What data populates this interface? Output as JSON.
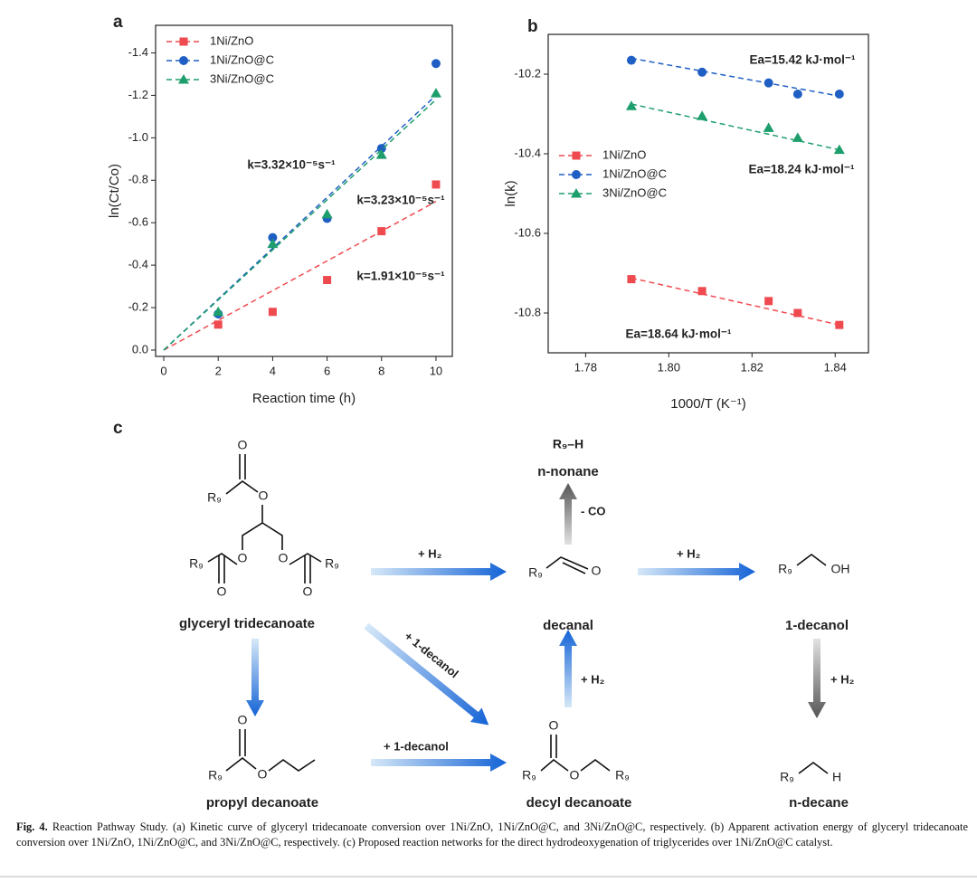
{
  "chart_data": [
    {
      "type": "scatter",
      "panel": "a",
      "x_label": "Reaction time (h)",
      "y_label": "ln(Ct/Co)",
      "x": [
        2,
        4,
        6,
        8,
        10
      ],
      "fit_x": [
        0,
        10
      ],
      "xlim": [
        -0.3,
        10.6
      ],
      "xticks": [
        0,
        2,
        4,
        6,
        8,
        10
      ],
      "ylim": [
        0.03,
        -1.53
      ],
      "yticks": [
        {
          "value": 0,
          "label": "0.0"
        },
        -0.2,
        -0.4,
        -0.6,
        -0.8,
        {
          "value": -1,
          "label": "-1.0"
        },
        -1.2,
        -1.4
      ],
      "legend": "upper left",
      "series": [
        {
          "name": "1Ni/ZnO",
          "color": "#ef4a4f",
          "marker": "square",
          "values": [
            -0.12,
            -0.18,
            -0.33,
            -0.56,
            -0.78
          ],
          "fit": [
            0,
            -0.7
          ],
          "annotation": "k=1.91×10⁻⁵s⁻¹"
        },
        {
          "name": "1Ni/ZnO@C",
          "color": "#1f5fc4",
          "marker": "circle",
          "values": [
            -0.17,
            -0.53,
            -0.62,
            -0.95,
            -1.35
          ],
          "fit": [
            0,
            -1.2
          ],
          "annotation": "k=3.32×10⁻⁵s⁻¹"
        },
        {
          "name": "3Ni/ZnO@C",
          "color": "#1e9e6c",
          "marker": "triangle",
          "values": [
            -0.18,
            -0.5,
            -0.64,
            -0.92,
            -1.21
          ],
          "fit": [
            0,
            -1.18
          ],
          "annotation": "k=3.23×10⁻⁵s⁻¹"
        }
      ]
    },
    {
      "type": "scatter",
      "panel": "b",
      "x_label": "1000/T (K⁻¹)",
      "y_label": "ln(k)",
      "x": [
        1.791,
        1.808,
        1.824,
        1.831,
        1.841
      ],
      "fit_x": [
        1.791,
        1.841
      ],
      "xlim": [
        1.771,
        1.848
      ],
      "xticks": [
        1.78,
        {
          "value": 1.8,
          "label": "1.80"
        },
        1.82,
        1.84
      ],
      "ylim": [
        -10.9,
        -10.1
      ],
      "yticks": [
        -10.2,
        -10.4,
        -10.6,
        -10.8
      ],
      "legend": "center left",
      "series": [
        {
          "name": "1Ni/ZnO",
          "color": "#ef4a4f",
          "marker": "square",
          "values": [
            -10.715,
            -10.745,
            -10.77,
            -10.8,
            -10.83
          ],
          "fit": [
            -10.712,
            -10.83
          ],
          "annotation": "Ea=18.64 kJ·mol⁻¹"
        },
        {
          "name": "1Ni/ZnO@C",
          "color": "#1f5fc4",
          "marker": "circle",
          "values": [
            -10.165,
            -10.195,
            -10.222,
            -10.25,
            -10.25
          ],
          "fit": [
            -10.16,
            -10.255
          ],
          "annotation": "Ea=15.42 kJ·mol⁻¹"
        },
        {
          "name": "3Ni/ZnO@C",
          "color": "#1e9e6c",
          "marker": "triangle",
          "values": [
            -10.28,
            -10.305,
            -10.335,
            -10.36,
            -10.39
          ],
          "fit": [
            -10.275,
            -10.39
          ],
          "annotation": "Ea=18.24 kJ·mol⁻¹"
        }
      ]
    }
  ],
  "diagram": {
    "panel": "c",
    "compounds": [
      {
        "name": "glyceryl tridecanoate",
        "atoms": [
          "O",
          "R₉",
          "O",
          "R₉",
          "O",
          "O",
          "R₉",
          "O",
          "O"
        ]
      },
      {
        "name": "decanal",
        "atoms": [
          "R₉",
          "O"
        ]
      },
      {
        "name": "1-decanol",
        "atoms": [
          "R₉",
          "OH"
        ]
      },
      {
        "name": "propyl decanoate",
        "atoms": [
          "O",
          "R₉",
          "O"
        ]
      },
      {
        "name": "decyl decanoate",
        "atoms": [
          "O",
          "R₉",
          "O",
          "R₉"
        ]
      },
      {
        "name": "n-decane",
        "atoms": [
          "R₉",
          "H"
        ]
      },
      {
        "name": "n-nonane",
        "atoms": [
          "R₉–H"
        ]
      }
    ],
    "arrows": [
      {
        "label": "+ H₂"
      },
      {
        "label": "+ H₂"
      },
      {
        "label": "- CO"
      },
      {
        "label": "+ 1-decanol"
      },
      {
        "label": "+ 1-decanol"
      },
      {
        "label": "+ H₂"
      },
      {
        "label": "+ H₂"
      }
    ]
  },
  "caption": {
    "label": "Fig. 4.",
    "text": "Reaction Pathway Study. (a) Kinetic curve of glyceryl tridecanoate conversion over 1Ni/ZnO, 1Ni/ZnO@C, and 3Ni/ZnO@C, respectively. (b) Apparent activation energy of glyceryl tridecanoate conversion over 1Ni/ZnO, 1Ni/ZnO@C, and 3Ni/ZnO@C, respectively. (c) Proposed reaction networks for the direct hydrodeoxygenation of triglycerides over 1Ni/ZnO@C catalyst."
  }
}
